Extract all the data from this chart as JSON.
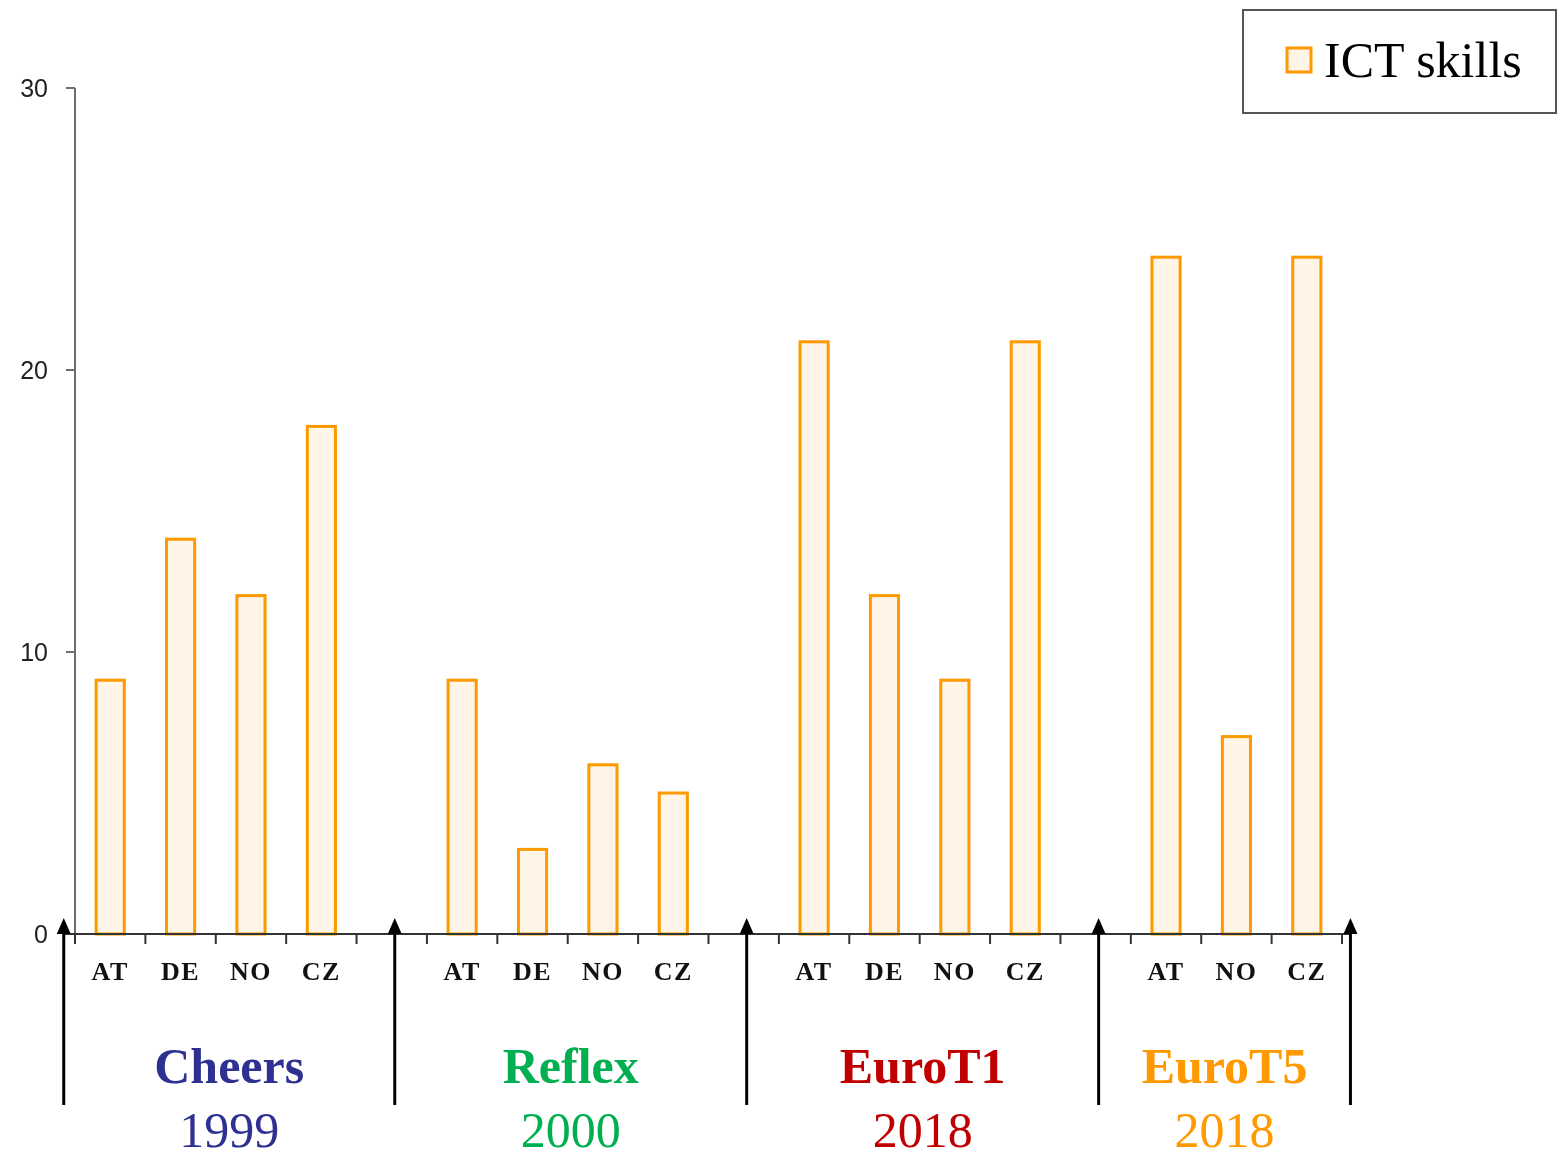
{
  "chart_data": {
    "type": "bar",
    "categories": [
      "AT",
      "DE",
      "NO",
      "CZ",
      null,
      "AT",
      "DE",
      "NO",
      "CZ",
      null,
      "AT",
      "DE",
      "NO",
      "CZ",
      null,
      "AT",
      "NO",
      "CZ"
    ],
    "series": [
      {
        "name": "ICT skills",
        "color": "#ff9900",
        "values": [
          9,
          14,
          12,
          18,
          null,
          9,
          3,
          6,
          5,
          null,
          21,
          12,
          9,
          21,
          null,
          24,
          7,
          24
        ]
      }
    ],
    "ylim": [
      0,
      30
    ],
    "yticks": [
      0,
      10,
      20,
      30
    ],
    "legend": "top right",
    "annotations": [
      "Cheers",
      "1999",
      "Reflex",
      "2000",
      "EuroT1",
      "2018",
      "EuroT5",
      "2018"
    ]
  }
}
